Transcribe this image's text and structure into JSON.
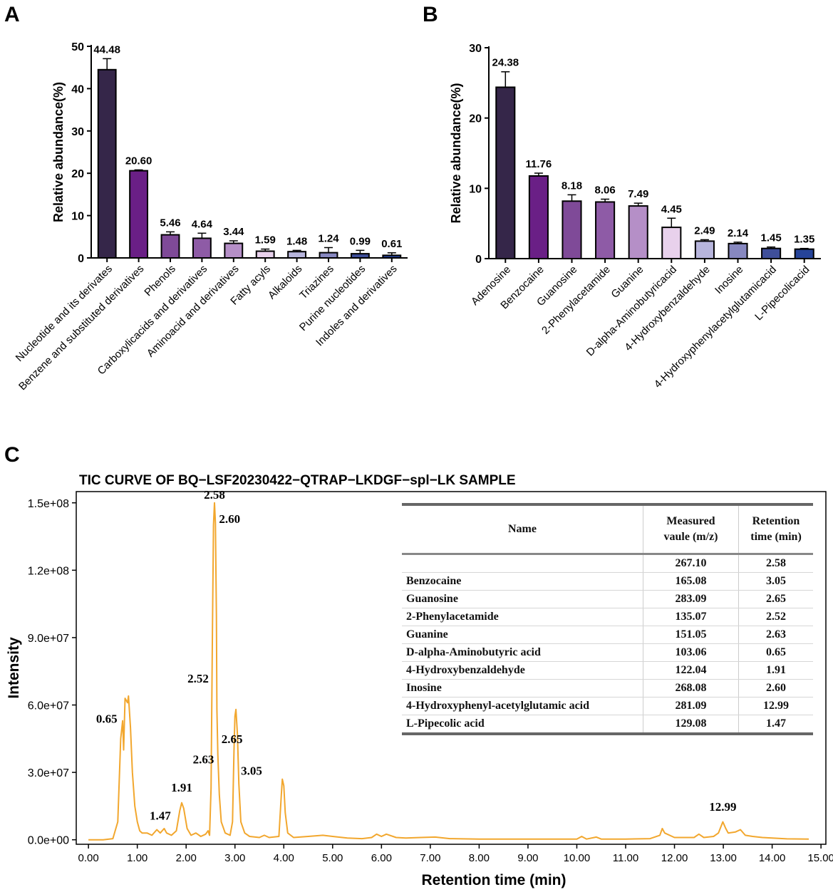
{
  "panels": {
    "a_label": "A",
    "b_label": "B",
    "c_label": "C"
  },
  "colors": {
    "bar_palette": [
      "#352649",
      "#6a1f86",
      "#7f4a98",
      "#8e5ba6",
      "#b58fc7",
      "#e8d1ec",
      "#b7b5dc",
      "#8788c0",
      "#3f4f9a",
      "#26449a"
    ],
    "tic_line": "#f2a72e"
  },
  "chart_data": [
    {
      "id": "A",
      "type": "bar",
      "ylabel": "Relative abundance(%)",
      "ylim": [
        0,
        50
      ],
      "yticks": [
        0,
        10,
        20,
        30,
        40,
        50
      ],
      "categories": [
        "Nucleotide and its derivates",
        "Benzene and substituted derivatives",
        "Phenols",
        "Carboxylicacids and derivatives",
        "Aminoacid and derivatives",
        "Fatty acyls",
        "Alkaloids",
        "Triazines",
        "Purine nucleotides",
        "Indoles and derivatives"
      ],
      "values": [
        44.48,
        20.6,
        5.46,
        4.64,
        3.44,
        1.59,
        1.48,
        1.24,
        0.99,
        0.61
      ],
      "value_labels": [
        "44.48",
        "20.60",
        "5.46",
        "4.64",
        "3.44",
        "1.59",
        "1.48",
        "1.24",
        "0.99",
        "0.61"
      ],
      "errors": [
        2.6,
        0.2,
        0.7,
        1.2,
        0.6,
        0.5,
        0.3,
        1.2,
        0.8,
        0.6
      ]
    },
    {
      "id": "B",
      "type": "bar",
      "ylabel": "Relative abundance(%)",
      "ylim": [
        0,
        30
      ],
      "yticks": [
        0,
        10,
        20,
        30
      ],
      "categories": [
        "Adenosine",
        "Benzocaine",
        "Guanosine",
        "2-Phenylacetamide",
        "Guanine",
        "D-alpha-Aminobutyricacid",
        "4-Hydroxybenzaldehyde",
        "Inosine",
        "4-Hydroxyphenylacetylglutamicacid",
        "L-Pipecolicacid"
      ],
      "values": [
        24.38,
        11.76,
        8.18,
        8.06,
        7.49,
        4.45,
        2.49,
        2.14,
        1.45,
        1.35
      ],
      "value_labels": [
        "24.38",
        "11.76",
        "8.18",
        "8.06",
        "7.49",
        "4.45",
        "2.49",
        "2.14",
        "1.45",
        "1.35"
      ],
      "errors": [
        2.2,
        0.4,
        0.9,
        0.4,
        0.4,
        1.3,
        0.2,
        0.2,
        0.2,
        0.1
      ]
    },
    {
      "id": "C",
      "type": "line",
      "title": "TIC CURVE OF BQ−LSF20230422−QTRAP−LKDGF−spl−LK SAMPLE",
      "xlabel": "Retention time (min)",
      "ylabel": "Intensity",
      "xlim": [
        -0.25,
        15.1
      ],
      "ylim": [
        -2000000,
        155000000
      ],
      "xticks": [
        0,
        1,
        2,
        3,
        4,
        5,
        6,
        7,
        8,
        9,
        10,
        11,
        12,
        13,
        14,
        15
      ],
      "xtick_labels": [
        "0.00",
        "1.00",
        "2.00",
        "3.00",
        "4.00",
        "5.00",
        "6.00",
        "7.00",
        "8.00",
        "9.00",
        "10.00",
        "11.00",
        "12.00",
        "13.00",
        "14.00",
        "15.00"
      ],
      "yticks": [
        0,
        30000000,
        60000000,
        90000000,
        120000000,
        150000000
      ],
      "ytick_labels": [
        "0.0e+00",
        "3.0e+07",
        "6.0e+07",
        "9.0e+07",
        "1.2e+08",
        "1.5e+08"
      ],
      "points": [
        [
          0.0,
          0
        ],
        [
          0.3,
          0
        ],
        [
          0.5,
          500000.0
        ],
        [
          0.6,
          8000000.0
        ],
        [
          0.66,
          45000000.0
        ],
        [
          0.7,
          53000000.0
        ],
        [
          0.72,
          40000000.0
        ],
        [
          0.75,
          63000000.0
        ],
        [
          0.8,
          61000000.0
        ],
        [
          0.82,
          64000000.0
        ],
        [
          0.86,
          50000000.0
        ],
        [
          0.9,
          30000000.0
        ],
        [
          0.95,
          15000000.0
        ],
        [
          1.0,
          8000000.0
        ],
        [
          1.05,
          4000000.0
        ],
        [
          1.1,
          3000000.0
        ],
        [
          1.2,
          3000000.0
        ],
        [
          1.3,
          2000000.0
        ],
        [
          1.4,
          4500000.0
        ],
        [
          1.47,
          3000000.0
        ],
        [
          1.55,
          5000000.0
        ],
        [
          1.6,
          3000000.0
        ],
        [
          1.7,
          2000000.0
        ],
        [
          1.8,
          4000000.0
        ],
        [
          1.87,
          13000000.0
        ],
        [
          1.91,
          16500000.0
        ],
        [
          1.95,
          14000000.0
        ],
        [
          2.02,
          5000000.0
        ],
        [
          2.1,
          2000000.0
        ],
        [
          2.2,
          3000000.0
        ],
        [
          2.3,
          1500000.0
        ],
        [
          2.4,
          2500000.0
        ],
        [
          2.45,
          4000000.0
        ],
        [
          2.48,
          2000000.0
        ],
        [
          2.51,
          23000000.0
        ],
        [
          2.52,
          45000000.0
        ],
        [
          2.54,
          95000000.0
        ],
        [
          2.56,
          140000000.0
        ],
        [
          2.58,
          150000000.0
        ],
        [
          2.6,
          141000000.0
        ],
        [
          2.62,
          100000000.0
        ],
        [
          2.63,
          58000000.0
        ],
        [
          2.65,
          38000000.0
        ],
        [
          2.68,
          20000000.0
        ],
        [
          2.72,
          8000000.0
        ],
        [
          2.8,
          3000000.0
        ],
        [
          2.9,
          2000000.0
        ],
        [
          2.95,
          8000000.0
        ],
        [
          2.98,
          40000000.0
        ],
        [
          3.0,
          55000000.0
        ],
        [
          3.02,
          58000000.0
        ],
        [
          3.05,
          47000000.0
        ],
        [
          3.08,
          25000000.0
        ],
        [
          3.12,
          8000000.0
        ],
        [
          3.2,
          3000000.0
        ],
        [
          3.3,
          1500000.0
        ],
        [
          3.5,
          1000000.0
        ],
        [
          3.6,
          2000000.0
        ],
        [
          3.7,
          1000000.0
        ],
        [
          3.9,
          1500000.0
        ],
        [
          3.95,
          20000000.0
        ],
        [
          3.97,
          27000000.0
        ],
        [
          4.0,
          24000000.0
        ],
        [
          4.03,
          12000000.0
        ],
        [
          4.08,
          3000000.0
        ],
        [
          4.2,
          1000000.0
        ],
        [
          4.5,
          1500000.0
        ],
        [
          4.8,
          2000000.0
        ],
        [
          5.0,
          1500000.0
        ],
        [
          5.3,
          800000.0
        ],
        [
          5.6,
          500000.0
        ],
        [
          5.8,
          1000000.0
        ],
        [
          5.9,
          2500000.0
        ],
        [
          6.0,
          1500000.0
        ],
        [
          6.1,
          2500000.0
        ],
        [
          6.3,
          1000000.0
        ],
        [
          6.5,
          800000.0
        ],
        [
          6.8,
          1000000.0
        ],
        [
          7.1,
          1200000.0
        ],
        [
          7.4,
          500000.0
        ],
        [
          8.0,
          300000.0
        ],
        [
          9.0,
          300000.0
        ],
        [
          10.0,
          300000.0
        ],
        [
          10.1,
          1500000.0
        ],
        [
          10.2,
          300000.0
        ],
        [
          10.4,
          1200000.0
        ],
        [
          10.5,
          300000.0
        ],
        [
          11.0,
          300000.0
        ],
        [
          11.5,
          500000.0
        ],
        [
          11.7,
          2000000.0
        ],
        [
          11.75,
          5000000.0
        ],
        [
          11.8,
          3000000.0
        ],
        [
          12.0,
          1000000.0
        ],
        [
          12.4,
          1000000.0
        ],
        [
          12.5,
          2500000.0
        ],
        [
          12.6,
          1000000.0
        ],
        [
          12.8,
          1500000.0
        ],
        [
          12.9,
          3000000.0
        ],
        [
          12.99,
          8000000.0
        ],
        [
          13.05,
          5000000.0
        ],
        [
          13.1,
          3000000.0
        ],
        [
          13.25,
          3500000.0
        ],
        [
          13.35,
          4500000.0
        ],
        [
          13.45,
          2000000.0
        ],
        [
          13.6,
          1500000.0
        ],
        [
          13.8,
          1000000.0
        ],
        [
          14.0,
          800000.0
        ],
        [
          14.3,
          400000.0
        ],
        [
          14.75,
          300000.0
        ]
      ],
      "peak_labels": [
        {
          "text": "2.58",
          "x": 2.58,
          "y": 150000000,
          "anchor": "top"
        },
        {
          "text": "2.60",
          "x": 2.6,
          "y": 141000000,
          "anchor": "right"
        },
        {
          "text": "2.52",
          "x": 2.52,
          "y": 70000000,
          "anchor": "left"
        },
        {
          "text": "0.65",
          "x": 0.65,
          "y": 52000000,
          "anchor": "left"
        },
        {
          "text": "2.65",
          "x": 2.65,
          "y": 43000000,
          "anchor": "right"
        },
        {
          "text": "2.63",
          "x": 2.63,
          "y": 34000000,
          "anchor": "left"
        },
        {
          "text": "3.05",
          "x": 3.05,
          "y": 29000000,
          "anchor": "right"
        },
        {
          "text": "1.91",
          "x": 1.91,
          "y": 19500000,
          "anchor": "top"
        },
        {
          "text": "1.47",
          "x": 1.47,
          "y": 7000000,
          "anchor": "top"
        },
        {
          "text": "12.99",
          "x": 12.99,
          "y": 11000000,
          "anchor": "top"
        }
      ]
    }
  ],
  "table": {
    "headers": {
      "name": "Name",
      "measured_1": "Measured",
      "measured_2": "vaule (m/z)",
      "retention_1": "Retention",
      "retention_2": "time (min)"
    },
    "rows": [
      {
        "name": "",
        "mz": "267.10",
        "rt": "2.58"
      },
      {
        "name": "Benzocaine",
        "mz": "165.08",
        "rt": "3.05"
      },
      {
        "name": "Guanosine",
        "mz": "283.09",
        "rt": "2.65"
      },
      {
        "name": "2-Phenylacetamide",
        "mz": "135.07",
        "rt": "2.52"
      },
      {
        "name": "Guanine",
        "mz": "151.05",
        "rt": "2.63"
      },
      {
        "name": "D-alpha-Aminobutyric acid",
        "mz": "103.06",
        "rt": "0.65"
      },
      {
        "name": "4-Hydroxybenzaldehyde",
        "mz": "122.04",
        "rt": "1.91"
      },
      {
        "name": "Inosine",
        "mz": "268.08",
        "rt": "2.60"
      },
      {
        "name": "4-Hydroxyphenyl-acetylglutamic acid",
        "mz": "281.09",
        "rt": "12.99"
      },
      {
        "name": "L-Pipecolic acid",
        "mz": "129.08",
        "rt": "1.47"
      }
    ]
  }
}
